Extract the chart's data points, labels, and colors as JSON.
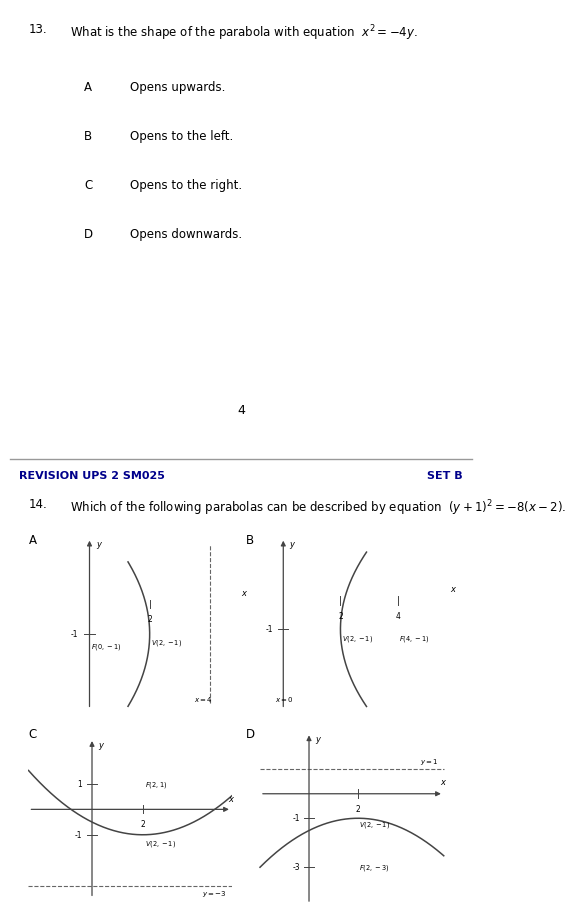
{
  "q13_number": "13.",
  "q13_text": "What is the shape of the parabola with equation",
  "q13_eq": "$x^2 = -4y$.",
  "options_q13": [
    [
      "A",
      "Opens upwards."
    ],
    [
      "B",
      "Opens to the left."
    ],
    [
      "C",
      "Opens to the right."
    ],
    [
      "D",
      "Opens downwards."
    ]
  ],
  "page_number": "4",
  "revision_header": "REVISION UPS 2 SM025",
  "set_label": "SET B",
  "q14_number": "14.",
  "q14_text": "Which of the following parabolas can be described by equation",
  "q14_eq": "$(y+1)^2 = -8(x-2)$.",
  "subplot_labels": [
    "A",
    "B",
    "C",
    "D"
  ],
  "bg_color": "#ffffff",
  "text_color": "#000000",
  "parabola_color": "#444444",
  "axis_color": "#444444",
  "dashed_color": "#666666",
  "header_bg": "#d8d8d8",
  "header_color": "#00008B",
  "separator_color": "#999999"
}
